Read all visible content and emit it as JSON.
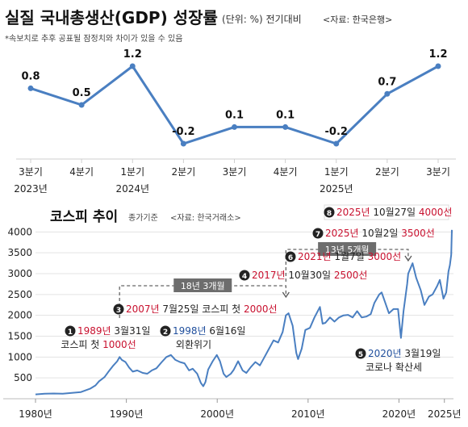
{
  "header": {
    "title": "실질 국내총생산(GDP) 성장률",
    "unit": "(단위: %) 전기대비",
    "source": "<자료: 한국은행>",
    "note": "*속보치로 추후 공표될 잠정치와 차이가 있을 수 있음"
  },
  "kospi_header": {
    "title": "코스피 추이",
    "unit": "종가기준",
    "source": "<자료: 한국거래소>"
  },
  "colors": {
    "line": "#4a7fc1",
    "accent_red": "#c8102e",
    "accent_blue": "#1f4e9c",
    "dark": "#222222",
    "gray": "#888888",
    "axis": "#cfcfcf"
  },
  "chart_data": [
    {
      "type": "line",
      "title": "실질 국내총생산(GDP) 성장률",
      "categories": [
        [
          "3분기",
          "2023년"
        ],
        [
          "4분기",
          ""
        ],
        [
          "1분기",
          "2024년"
        ],
        [
          "2분기",
          ""
        ],
        [
          "3분기",
          ""
        ],
        [
          "4분기",
          ""
        ],
        [
          "1분기",
          "2025년"
        ],
        [
          "2분기",
          ""
        ],
        [
          "3분기",
          ""
        ]
      ],
      "values": [
        0.8,
        0.5,
        1.2,
        -0.2,
        0.1,
        0.1,
        -0.2,
        0.7,
        1.2
      ],
      "value_labels": [
        "0.8",
        "0.5",
        "1.2",
        "-0.2",
        "0.1",
        "0.1",
        "-0.2",
        "0.7",
        "1.2"
      ],
      "ylim": [
        -0.2,
        1.2
      ],
      "grid": false
    },
    {
      "type": "line",
      "title": "코스피 추이",
      "x_ticks": [
        "1980년",
        "1990년",
        "2000년",
        "2010년",
        "2020년",
        "2025년"
      ],
      "x_tick_values": [
        1980,
        1990,
        2000,
        2010,
        2020,
        2025
      ],
      "y_ticks": [
        "4000",
        "3500",
        "3000",
        "2500",
        "2000",
        "1500",
        "1000",
        "500"
      ],
      "y_tick_values": [
        4000,
        3500,
        3000,
        2500,
        2000,
        1500,
        1000,
        500
      ],
      "xlim": [
        1980,
        2026
      ],
      "ylim": [
        0,
        4200
      ],
      "grid": true,
      "series": [
        {
          "x": [
            1980,
            1981,
            1982,
            1983,
            1984,
            1985,
            1986.0,
            1986.6,
            1987.0,
            1987.6,
            1988.0,
            1988.5,
            1989.0,
            1989.25,
            1989.5,
            1989.9,
            1990.3,
            1990.7,
            1991.2,
            1991.8,
            1992.3,
            1992.8,
            1993.3,
            1993.9,
            1994.4,
            1994.9,
            1995.4,
            1995.9,
            1996.4,
            1996.9,
            1997.3,
            1997.8,
            1998.2,
            1998.46,
            1998.7,
            1999.0,
            1999.5,
            1999.95,
            2000.3,
            2000.7,
            2001.0,
            2001.5,
            2001.8,
            2002.3,
            2002.8,
            2003.2,
            2003.7,
            2004.2,
            2004.7,
            2005.2,
            2005.7,
            2006.2,
            2006.7,
            2007.2,
            2007.56,
            2007.85,
            2008.3,
            2008.7,
            2008.9,
            2009.3,
            2009.7,
            2010.2,
            2010.7,
            2011.3,
            2011.6,
            2011.9,
            2012.4,
            2012.9,
            2013.4,
            2013.9,
            2014.4,
            2014.9,
            2015.4,
            2015.9,
            2016.4,
            2016.9,
            2017.3,
            2017.83,
            2018.1,
            2018.5,
            2018.9,
            2019.4,
            2019.9,
            2020.22,
            2020.5,
            2020.9,
            2021.02,
            2021.5,
            2021.9,
            2022.4,
            2022.8,
            2023.3,
            2023.7,
            2024.2,
            2024.5,
            2024.9,
            2025.2,
            2025.45,
            2025.6,
            2025.75,
            2025.82
          ],
          "y": [
            105,
            120,
            125,
            120,
            140,
            160,
            240,
            320,
            420,
            520,
            640,
            780,
            900,
            1000,
            930,
            880,
            750,
            650,
            680,
            620,
            600,
            680,
            730,
            880,
            1000,
            1050,
            930,
            880,
            850,
            680,
            720,
            600,
            380,
            300,
            400,
            700,
            900,
            1050,
            900,
            600,
            520,
            600,
            690,
            900,
            680,
            620,
            760,
            880,
            800,
            1000,
            1200,
            1400,
            1350,
            1600,
            2000,
            2050,
            1750,
            1100,
            950,
            1200,
            1650,
            1700,
            1950,
            2200,
            1800,
            1820,
            1950,
            1850,
            1950,
            2000,
            2010,
            1950,
            2100,
            1950,
            1970,
            2030,
            2300,
            2500,
            2550,
            2300,
            2050,
            2150,
            2150,
            1460,
            2100,
            2750,
            3000,
            3250,
            2900,
            2600,
            2250,
            2450,
            2500,
            2700,
            2850,
            2400,
            2550,
            3050,
            3200,
            3450,
            4050
          ]
        }
      ],
      "annotations": [
        {
          "num": "1",
          "parts": [
            [
              "1989년",
              "red"
            ],
            [
              " 3월31일",
              "dark"
            ]
          ],
          "line2": [
            [
              "코스피 첫 ",
              "dark"
            ],
            [
              "1000선",
              "red"
            ]
          ],
          "x": 1989.25,
          "y": 1000
        },
        {
          "num": "2",
          "parts": [
            [
              "1998년",
              "blue"
            ],
            [
              " 6월16일",
              "dark"
            ]
          ],
          "line2": [
            [
              "외환위기",
              "dark"
            ]
          ],
          "x": 1998.46,
          "y": 300
        },
        {
          "num": "3",
          "parts": [
            [
              "2007년",
              "red"
            ],
            [
              " 7월25일 코스피 첫 ",
              "dark"
            ],
            [
              "2000선",
              "red"
            ]
          ],
          "x": 2007.56,
          "y": 2000
        },
        {
          "num": "4",
          "parts": [
            [
              "2017년",
              "red"
            ],
            [
              " 10월30일 ",
              "dark"
            ],
            [
              "2500선",
              "red"
            ]
          ],
          "x": 2017.83,
          "y": 2500
        },
        {
          "num": "5",
          "parts": [
            [
              "2020년",
              "blue"
            ],
            [
              " 3월19일",
              "dark"
            ]
          ],
          "line2": [
            [
              "코로나 확산세",
              "dark"
            ]
          ],
          "x": 2020.22,
          "y": 1460
        },
        {
          "num": "6",
          "parts": [
            [
              "2021년",
              "red"
            ],
            [
              " 1월7일 ",
              "dark"
            ],
            [
              "3000선",
              "red"
            ]
          ],
          "x": 2021.02,
          "y": 3000
        },
        {
          "num": "7",
          "parts": [
            [
              "2025년",
              "red"
            ],
            [
              " 10월2일 ",
              "dark"
            ],
            [
              "3500선",
              "red"
            ]
          ],
          "x": 2025.75,
          "y": 3500
        },
        {
          "num": "8",
          "parts": [
            [
              "2025년",
              "red"
            ],
            [
              " 10월27일 ",
              "dark"
            ],
            [
              "4000선",
              "red"
            ]
          ],
          "x": 2025.82,
          "y": 4000
        }
      ],
      "spans": [
        {
          "label": "18년 3개월",
          "from": 1989.25,
          "to": 2007.56
        },
        {
          "label": "13년 5개월",
          "from": 2007.56,
          "to": 2021.02
        }
      ]
    }
  ]
}
